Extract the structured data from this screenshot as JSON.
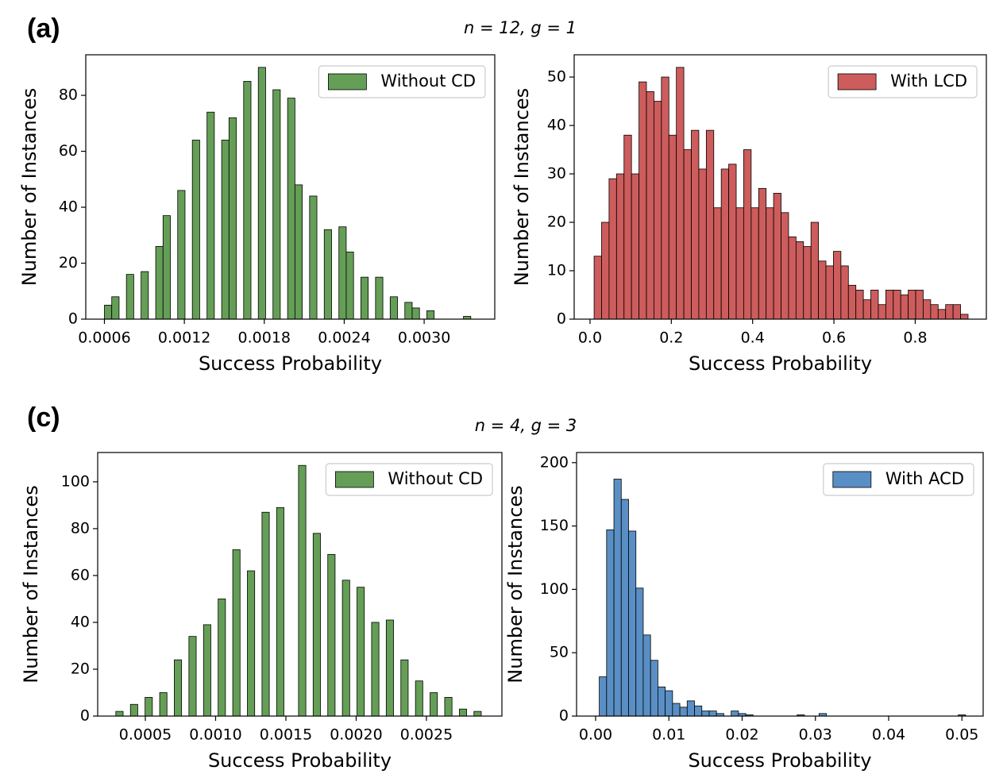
{
  "panels": [
    {
      "label": "(a)",
      "title": "n = 12, g = 1"
    },
    {
      "label": "(c)",
      "title": "n = 4, g = 3"
    }
  ],
  "chart_data": [
    {
      "type": "histogram",
      "xlabel": "Success Probability",
      "ylabel": "Number of Instances",
      "legend": "upper right",
      "series": [
        {
          "name": "Without CD",
          "color": "#659e56",
          "bins": [
            0.0006,
            0.000655,
            0.00071,
            0.000765,
            0.00082,
            0.000875,
            0.00093,
            0.000985,
            0.00104,
            0.001095,
            0.00115,
            0.001205,
            0.00126,
            0.001315,
            0.00137,
            0.001425,
            0.00148,
            0.001535,
            0.00159,
            0.001645,
            0.0017,
            0.001755,
            0.00181,
            0.001865,
            0.00192,
            0.001975,
            0.00203,
            0.002085,
            0.00214,
            0.002195,
            0.00225,
            0.002305,
            0.00236,
            0.002415,
            0.00247,
            0.002525,
            0.00258,
            0.002635,
            0.00269,
            0.002745,
            0.0028,
            0.002855,
            0.00291,
            0.002965,
            0.00302,
            0.003075,
            0.00313,
            0.003185,
            0.00324,
            0.003295,
            0.00335
          ],
          "values": [
            5,
            8,
            0,
            16,
            0,
            17,
            0,
            26,
            37,
            0,
            46,
            0,
            64,
            0,
            74,
            0,
            64,
            72,
            0,
            85,
            0,
            90,
            0,
            82,
            0,
            79,
            48,
            0,
            44,
            0,
            32,
            0,
            33,
            24,
            0,
            15,
            0,
            15,
            0,
            8,
            0,
            6,
            4,
            0,
            3,
            0,
            0,
            0,
            0,
            1
          ]
        }
      ],
      "xlim": [
        0.00046,
        0.00353
      ],
      "xticks": [
        0.0006,
        0.0012,
        0.0018,
        0.0024,
        {
          "value": 0.003,
          "label": "0.0030"
        }
      ],
      "ylim": [
        0,
        94.5
      ],
      "yticks": [
        0,
        20,
        40,
        60,
        80
      ]
    },
    {
      "type": "histogram",
      "xlabel": "Success Probability",
      "ylabel": "Number of Instances",
      "legend": "upper right",
      "series": [
        {
          "name": "With LCD",
          "color": "#cd5c5c",
          "bins": [
            0.01,
            0.0284,
            0.0468,
            0.0652,
            0.0836,
            0.102,
            0.1204,
            0.1388,
            0.1572,
            0.1756,
            0.194,
            0.2124,
            0.2308,
            0.2492,
            0.2676,
            0.286,
            0.3044,
            0.3228,
            0.3412,
            0.3596,
            0.378,
            0.3964,
            0.4148,
            0.4332,
            0.4516,
            0.47,
            0.4884,
            0.5068,
            0.5252,
            0.5436,
            0.562,
            0.5804,
            0.5988,
            0.6172,
            0.6356,
            0.654,
            0.6724,
            0.6908,
            0.7092,
            0.7276,
            0.746,
            0.7644,
            0.7828,
            0.8012,
            0.8196,
            0.838,
            0.8564,
            0.8748,
            0.8932,
            0.9116,
            0.93
          ],
          "values": [
            13,
            20,
            29,
            30,
            38,
            30,
            49,
            47,
            45,
            50,
            38,
            52,
            35,
            39,
            31,
            39,
            23,
            31,
            32,
            23,
            35,
            23,
            27,
            23,
            26,
            22,
            17,
            16,
            15,
            20,
            12,
            11,
            14,
            11,
            7,
            6,
            4,
            6,
            3,
            6,
            6,
            5,
            6,
            6,
            4,
            3,
            2,
            3,
            3,
            1
          ]
        }
      ],
      "xlim": [
        -0.039,
        0.975
      ],
      "xticks": [
        {
          "value": 0,
          "label": "0.0"
        },
        0.2,
        0.4,
        0.6,
        0.8
      ],
      "ylim": [
        0,
        54.6
      ],
      "yticks": [
        0,
        10,
        20,
        30,
        40,
        50
      ]
    },
    {
      "type": "histogram",
      "xlabel": "Success Probability",
      "ylabel": "Number of Instances",
      "legend": "upper right",
      "series": [
        {
          "name": "Without CD",
          "color": "#659e56",
          "bins": [
            0.00029,
            0.000342,
            0.000394,
            0.000446,
            0.000498,
            0.00055,
            0.000602,
            0.000654,
            0.000706,
            0.000758,
            0.00081,
            0.000862,
            0.000914,
            0.000966,
            0.001018,
            0.00107,
            0.001122,
            0.001174,
            0.001226,
            0.001278,
            0.00133,
            0.001382,
            0.001434,
            0.001486,
            0.001538,
            0.00159,
            0.001642,
            0.001694,
            0.001746,
            0.001798,
            0.00185,
            0.001902,
            0.001954,
            0.002006,
            0.002058,
            0.00211,
            0.002162,
            0.002214,
            0.002266,
            0.002318,
            0.00237,
            0.002422,
            0.002474,
            0.002526,
            0.002578,
            0.00263,
            0.002682,
            0.002734,
            0.002786,
            0.002838,
            0.00289
          ],
          "values": [
            2,
            0,
            5,
            0,
            8,
            0,
            10,
            0,
            24,
            0,
            34,
            0,
            39,
            0,
            50,
            0,
            71,
            0,
            62,
            0,
            87,
            0,
            89,
            0,
            0,
            107,
            0,
            78,
            0,
            69,
            0,
            58,
            0,
            55,
            0,
            40,
            0,
            41,
            0,
            24,
            0,
            15,
            0,
            10,
            0,
            8,
            0,
            3,
            0,
            2
          ]
        }
      ],
      "xlim": [
        0.000161,
        0.003037
      ],
      "xticks": [
        0.0005,
        {
          "value": 0.001,
          "label": "0.0010"
        },
        0.0015,
        {
          "value": 0.002,
          "label": "0.0020"
        },
        0.0025
      ],
      "ylim": [
        0,
        112.5
      ],
      "yticks": [
        0,
        20,
        40,
        60,
        80,
        100
      ]
    },
    {
      "type": "histogram",
      "xlabel": "Success Probability",
      "ylabel": "Number of Instances",
      "legend": "upper right",
      "series": [
        {
          "name": "With ACD",
          "color": "#5a8fc5",
          "bins": [
            0.0005,
            0.0015,
            0.0025,
            0.0035,
            0.0045,
            0.0055,
            0.0065,
            0.0075,
            0.0085,
            0.0095,
            0.0105,
            0.0115,
            0.0125,
            0.0135,
            0.0145,
            0.0155,
            0.0165,
            0.0175,
            0.0185,
            0.0195,
            0.0205,
            0.0215,
            0.0225,
            0.0235,
            0.0245,
            0.0255,
            0.0265,
            0.0275,
            0.0285,
            0.0295,
            0.0305,
            0.0315,
            0.0325,
            0.0335,
            0.0345,
            0.0355,
            0.0365,
            0.0375,
            0.0385,
            0.0395,
            0.0405,
            0.0415,
            0.0425,
            0.0435,
            0.0445,
            0.0455,
            0.0465,
            0.0475,
            0.0485,
            0.0495,
            0.0505
          ],
          "values": [
            31,
            147,
            187,
            171,
            146,
            101,
            64,
            44,
            23,
            20,
            10,
            7,
            12,
            8,
            4,
            4,
            2,
            0,
            4,
            2,
            1,
            0,
            0,
            0,
            0,
            0,
            0,
            1,
            0,
            0,
            2,
            0,
            0,
            0,
            0,
            0,
            0,
            0,
            0,
            0,
            0,
            0,
            0,
            0,
            0,
            0,
            0,
            0,
            0,
            1
          ]
        }
      ],
      "xlim": [
        -0.0026,
        0.0529
      ],
      "xticks": [
        {
          "value": 0,
          "label": "0.00"
        },
        0.01,
        0.02,
        0.03,
        0.04,
        0.05
      ],
      "ylim": [
        0,
        208
      ],
      "yticks": [
        0,
        50,
        100,
        150,
        200
      ]
    }
  ]
}
